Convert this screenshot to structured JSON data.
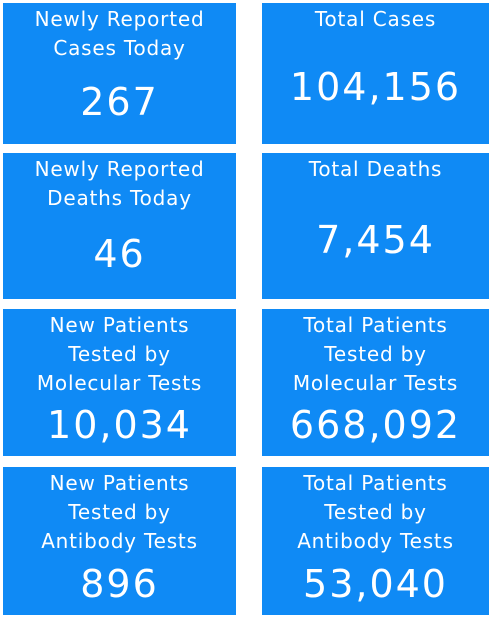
{
  "tiles": [
    {
      "label": [
        "Newly Reported",
        "Cases Today"
      ],
      "value": "267"
    },
    {
      "label": [
        "Total Cases"
      ],
      "value": "104,156"
    },
    {
      "label": [
        "Newly Reported",
        "Deaths Today"
      ],
      "value": "46"
    },
    {
      "label": [
        "Total Deaths"
      ],
      "value": "7,454"
    },
    {
      "label": [
        "New Patients",
        "Tested by",
        "Molecular Tests"
      ],
      "value": "10,034"
    },
    {
      "label": [
        "Total Patients",
        "Tested by",
        "Molecular Tests"
      ],
      "value": "668,092"
    },
    {
      "label": [
        "New Patients",
        "Tested by",
        "Antibody Tests"
      ],
      "value": "896"
    },
    {
      "label": [
        "Total Patients",
        "Tested by",
        "Antibody Tests"
      ],
      "value": "53,040"
    }
  ]
}
